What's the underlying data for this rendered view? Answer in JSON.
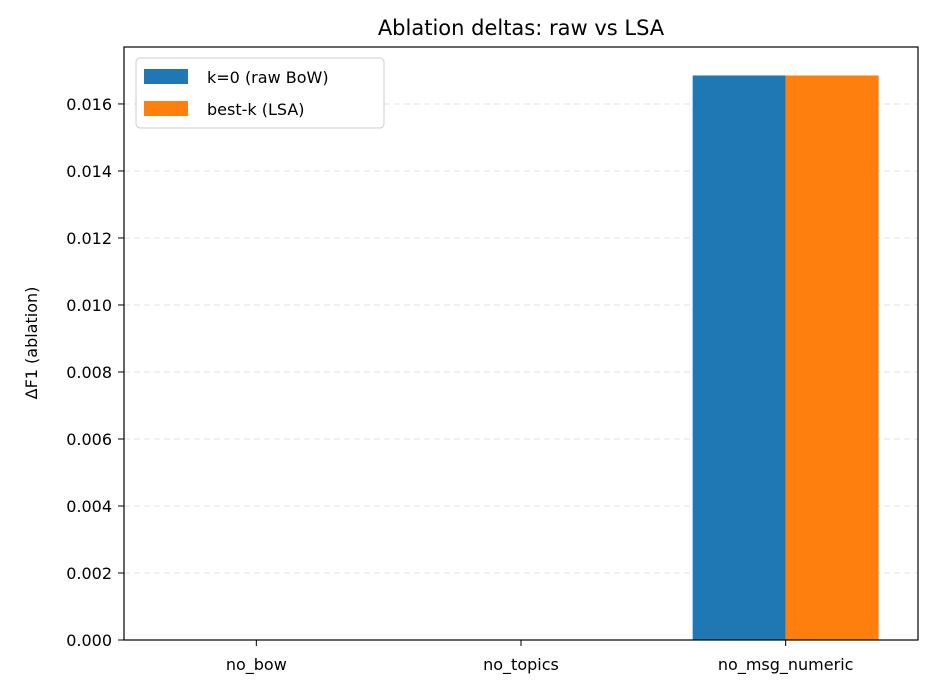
{
  "chart_data": {
    "type": "bar",
    "title": "Ablation deltas: raw vs LSA",
    "xlabel": "",
    "ylabel": "ΔF1 (ablation)",
    "categories": [
      "no_bow",
      "no_topics",
      "no_msg_numeric"
    ],
    "series": [
      {
        "name": "k=0 (raw BoW)",
        "color": "#1f77b4",
        "values": [
          0,
          0,
          0.01685
        ]
      },
      {
        "name": "best-k (LSA)",
        "color": "#ff7f0e",
        "values": [
          0,
          0,
          0.01685
        ]
      }
    ],
    "ylim": [
      0,
      0.0177
    ],
    "yticks": [
      "0.000",
      "0.002",
      "0.004",
      "0.006",
      "0.008",
      "0.010",
      "0.012",
      "0.014",
      "0.016"
    ],
    "ytick_values": [
      0,
      0.002,
      0.004,
      0.006,
      0.008,
      0.01,
      0.012,
      0.014,
      0.016
    ],
    "grid": "y-dashed",
    "legend_position": "top-left"
  }
}
